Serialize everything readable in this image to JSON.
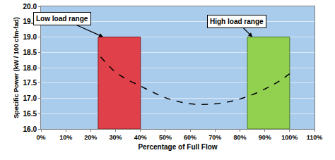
{
  "chart_data": {
    "type": "line",
    "x_label": "Percentage of Full Flow",
    "y_label": "Specific Power (kW / 100 cfm-fad)",
    "x": [
      24,
      30,
      35,
      40,
      45,
      50,
      55,
      60,
      65,
      70,
      75,
      80,
      85,
      90,
      95,
      100
    ],
    "values": [
      18.35,
      17.85,
      17.6,
      17.4,
      17.2,
      17.02,
      16.9,
      16.82,
      16.8,
      16.82,
      16.88,
      16.98,
      17.12,
      17.3,
      17.52,
      17.8
    ],
    "color": "#000000",
    "line_style": "dash",
    "xlim": [
      0,
      110
    ],
    "xticks": [
      {
        "value": 0,
        "label": "0%"
      },
      {
        "value": 10,
        "label": "10%"
      },
      {
        "value": 20,
        "label": "20%"
      },
      {
        "value": 30,
        "label": "30%"
      },
      {
        "value": 40,
        "label": "40%"
      },
      {
        "value": 50,
        "label": "50%"
      },
      {
        "value": 60,
        "label": "60%"
      },
      {
        "value": 70,
        "label": "70%"
      },
      {
        "value": 80,
        "label": "80%"
      },
      {
        "value": 90,
        "label": "90%"
      },
      {
        "value": 100,
        "label": "100%"
      },
      {
        "value": 110,
        "label": "110%"
      }
    ],
    "ylim": [
      16,
      20
    ],
    "yticks": [
      {
        "value": 16,
        "label": "16.0"
      },
      {
        "value": 16.5,
        "label": "16.5"
      },
      {
        "value": 17,
        "label": "17.0"
      },
      {
        "value": 17.5,
        "label": "17.5"
      },
      {
        "value": 18,
        "label": "18.0"
      },
      {
        "value": 18.5,
        "label": "18.5"
      },
      {
        "value": 19,
        "label": "19.0"
      },
      {
        "value": 19.5,
        "label": "19.5"
      },
      {
        "value": 20,
        "label": "20.0"
      }
    ],
    "grid": true,
    "regions": [
      {
        "label": "Low load range",
        "x": [
          23,
          40
        ],
        "value": 19,
        "color": "#e0404a"
      },
      {
        "label": "High load range",
        "x": [
          83,
          100
        ],
        "value": 19,
        "color": "#92d050"
      }
    ]
  }
}
